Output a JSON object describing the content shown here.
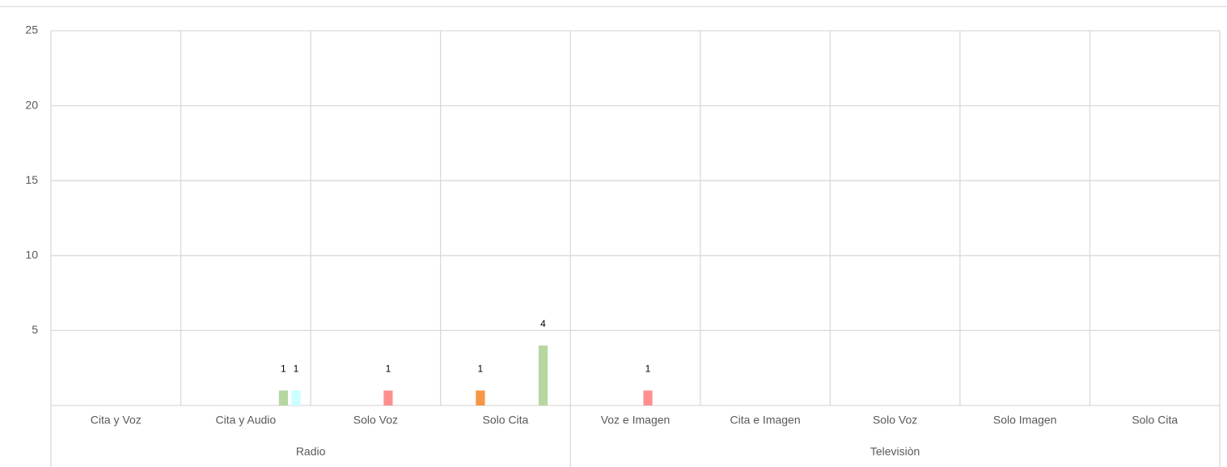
{
  "chart_data": {
    "type": "bar",
    "groups": [
      {
        "name": "Radio",
        "categories": [
          "Cita y Voz",
          "Cita y Audio",
          "Solo Voz",
          "Solo Cita"
        ]
      },
      {
        "name": "Televisiòn",
        "categories": [
          "Voz e Imagen",
          "Cita e Imagen",
          "Solo Voz",
          "Solo Imagen",
          "Solo Cita"
        ]
      }
    ],
    "series": [
      {
        "color": "#8db3e2",
        "values": [
          0,
          0,
          0,
          0,
          0,
          0,
          0,
          0,
          0
        ]
      },
      {
        "color": "#d99694",
        "values": [
          0,
          0,
          0,
          0,
          0,
          0,
          0,
          0,
          0
        ]
      },
      {
        "color": "#f79646",
        "values": [
          0,
          0,
          0,
          1,
          0,
          0,
          0,
          0,
          0
        ]
      },
      {
        "color": "#b2a2c7",
        "values": [
          0,
          0,
          0,
          0,
          0,
          0,
          0,
          0,
          0
        ]
      },
      {
        "color": "#93cddd",
        "values": [
          0,
          0,
          0,
          0,
          0,
          0,
          0,
          0,
          0
        ]
      },
      {
        "color": "#ff8f8f",
        "values": [
          0,
          0,
          1,
          0,
          1,
          0,
          0,
          0,
          0
        ]
      },
      {
        "color": "#fac090",
        "values": [
          0,
          0,
          0,
          0,
          0,
          0,
          0,
          0,
          0
        ]
      },
      {
        "color": "#b6d7a0",
        "values": [
          0,
          1,
          0,
          4,
          0,
          0,
          0,
          0,
          0
        ]
      },
      {
        "color": "#ccffff",
        "values": [
          0,
          1,
          0,
          0,
          0,
          0,
          0,
          0,
          0
        ]
      }
    ],
    "ylim": [
      0,
      25
    ],
    "yticks": [
      5,
      10,
      15,
      20,
      25
    ],
    "grid": true
  }
}
